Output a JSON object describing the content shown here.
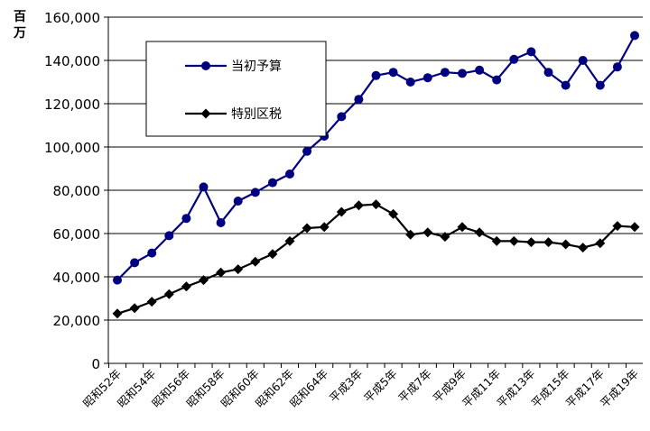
{
  "chart_data": {
    "type": "line",
    "unit_label": "百万",
    "ylim": [
      0,
      160000
    ],
    "y_ticks": [
      "0",
      "20,000",
      "40,000",
      "60,000",
      "80,000",
      "100,000",
      "120,000",
      "140,000",
      "160,000"
    ],
    "x_tick_labels": [
      "昭和52年",
      "昭和54年",
      "昭和56年",
      "昭和58年",
      "昭和60年",
      "昭和62年",
      "昭和64年",
      "平成3年",
      "平成5年",
      "平成7年",
      "平成9年",
      "平成11年",
      "平成13年",
      "平成15年",
      "平成17年",
      "平成19年"
    ],
    "grid": true,
    "legend_position": "top-left",
    "series": [
      {
        "name": "当初予算",
        "color": "#000080",
        "marker": "circle",
        "values": [
          38500,
          46500,
          51000,
          59000,
          67000,
          81500,
          65000,
          75000,
          79000,
          83500,
          87500,
          98000,
          105000,
          114000,
          122000,
          133000,
          134500,
          130000,
          132000,
          134500,
          134000,
          135500,
          131000,
          140500,
          144000,
          134500,
          128500,
          140000,
          128500,
          137000,
          151500
        ]
      },
      {
        "name": "特別区税",
        "color": "#000000",
        "marker": "diamond",
        "values": [
          23000,
          25500,
          28500,
          32000,
          35500,
          38500,
          42000,
          43500,
          47000,
          50500,
          56500,
          62500,
          63000,
          70000,
          73000,
          73500,
          69000,
          59500,
          60500,
          58500,
          63000,
          60500,
          56500,
          56500,
          56000,
          56000,
          55000,
          53500,
          55500,
          63500,
          63000
        ]
      }
    ]
  }
}
